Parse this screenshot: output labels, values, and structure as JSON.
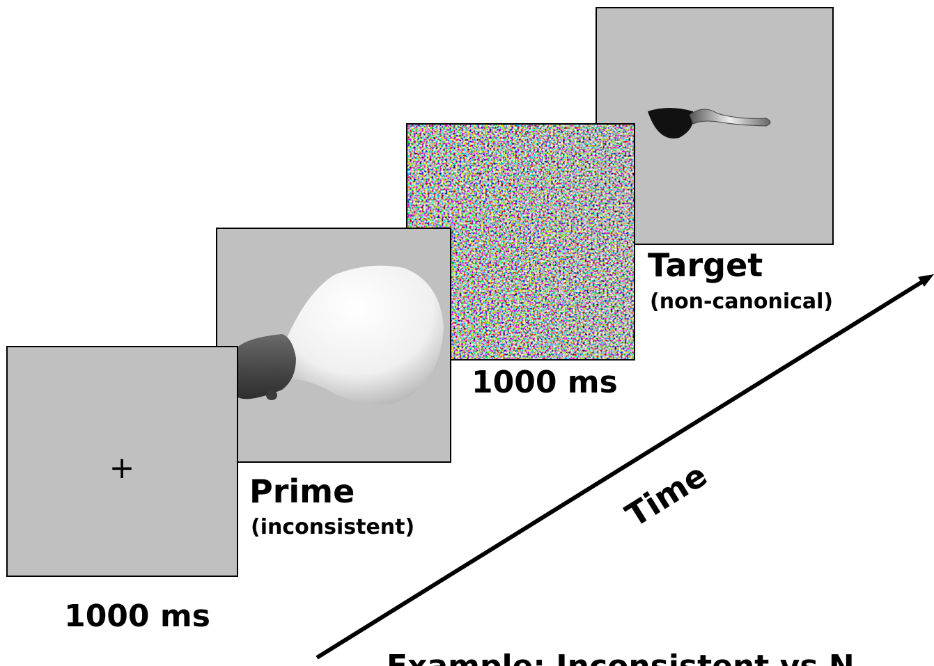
{
  "panels": [
    {
      "symbol": "+",
      "duration": "1000 ms"
    },
    {
      "label": "Prime",
      "condition": "(inconsistent)"
    },
    {
      "duration": "1000 ms"
    },
    {
      "label": "Target",
      "condition": "(non-canonical)"
    }
  ],
  "axis": {
    "label": "Time"
  },
  "caption": "Example: Inconsistent vs N"
}
